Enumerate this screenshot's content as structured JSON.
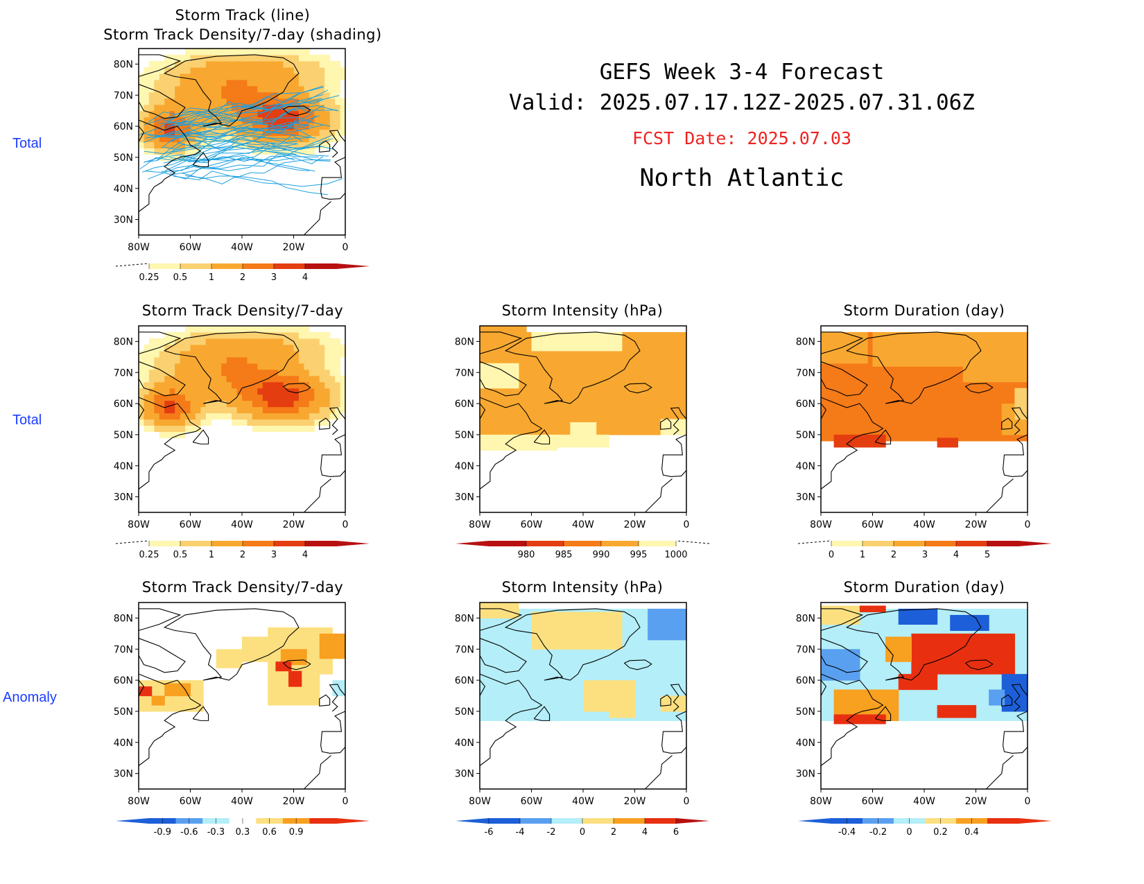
{
  "header": {
    "title": "GEFS Week 3-4 Forecast",
    "valid": "Valid: 2025.07.17.12Z-2025.07.31.06Z",
    "fcst_date": "FCST Date: 2025.07.03",
    "region": "North Atlantic"
  },
  "row_labels": [
    "Total",
    "Total",
    "Anomaly"
  ],
  "axes": {
    "lat_labels": [
      "80N",
      "70N",
      "60N",
      "50N",
      "40N",
      "30N"
    ],
    "lon_labels": [
      "80W",
      "60W",
      "40W",
      "20W",
      "0"
    ]
  },
  "panels": {
    "track": {
      "title_line1": "Storm Track (line)",
      "title_line2": "Storm Track Density/7-day (shading)",
      "colorbar": [
        "0.25",
        "0.5",
        "1",
        "2",
        "3",
        "4"
      ],
      "palette": [
        "#fff6b0",
        "#fbd070",
        "#f8a830",
        "#f57a18",
        "#e43d10",
        "#b81010"
      ]
    },
    "density_total": {
      "title": "Storm Track Density/7-day",
      "colorbar": [
        "0.25",
        "0.5",
        "1",
        "2",
        "3",
        "4"
      ],
      "palette": [
        "#fff6b0",
        "#fbd070",
        "#f8a830",
        "#f57a18",
        "#e43d10",
        "#b81010"
      ]
    },
    "intensity_total": {
      "title": "Storm Intensity (hPa)",
      "colorbar": [
        "980",
        "985",
        "990",
        "995",
        "1000"
      ],
      "palette": [
        "#b81010",
        "#e43d10",
        "#f57a18",
        "#f8a830",
        "#fff6b0"
      ]
    },
    "duration_total": {
      "title": "Storm Duration (day)",
      "colorbar": [
        "0",
        "1",
        "2",
        "3",
        "4",
        "5"
      ],
      "palette": [
        "#fff6b0",
        "#fbd070",
        "#f8a830",
        "#f57a18",
        "#e43d10",
        "#b81010"
      ]
    },
    "density_anom": {
      "title": "Storm Track Density/7-day",
      "colorbar": [
        "-0.9",
        "-0.6",
        "-0.3",
        "0.3",
        "0.6",
        "0.9"
      ],
      "palette": [
        "#1c5fd8",
        "#5aa0f0",
        "#b4eef8",
        "#ffffff",
        "#fce080",
        "#f8a020",
        "#e83010"
      ]
    },
    "intensity_anom": {
      "title": "Storm Intensity (hPa)",
      "colorbar": [
        "-6",
        "-4",
        "-2",
        "0",
        "2",
        "4",
        "6"
      ],
      "palette": [
        "#1c5fd8",
        "#5aa0f0",
        "#b4eef8",
        "#fce080",
        "#f8a020",
        "#e83010"
      ]
    },
    "duration_anom": {
      "title": "Storm Duration (day)",
      "colorbar": [
        "-0.4",
        "-0.2",
        "0",
        "0.2",
        "0.4"
      ],
      "palette": [
        "#1c5fd8",
        "#5aa0f0",
        "#b4eef8",
        "#fce080",
        "#f8a020",
        "#e83010"
      ]
    }
  }
}
